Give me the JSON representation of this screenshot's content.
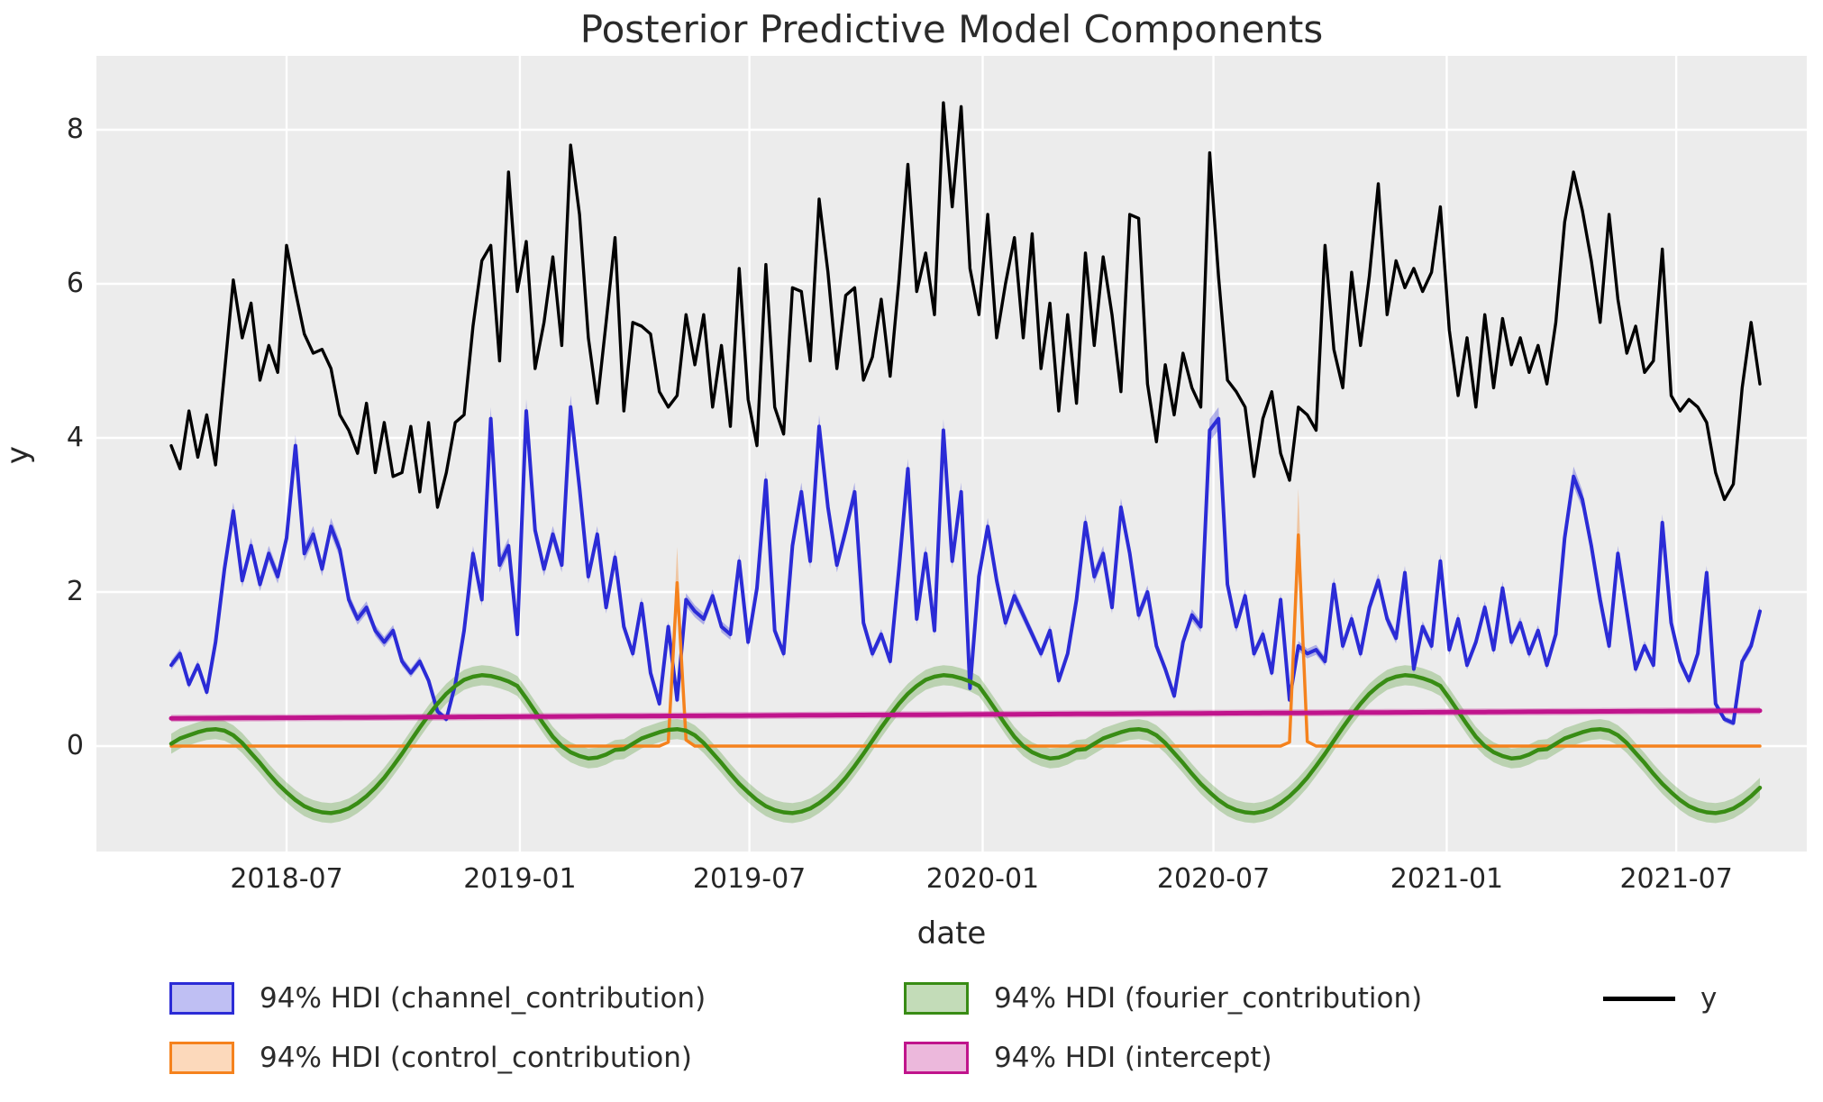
{
  "chart_data": {
    "type": "line",
    "title": "Posterior Predictive Model Components",
    "xlabel": "date",
    "ylabel": "y",
    "background_color": "#ececec",
    "grid_color": "#ffffff",
    "text_color": "#262626",
    "x_start_date": "2018-04-01",
    "freq_days": 7,
    "n_points": 180,
    "ylim": [
      -1.38,
      9.02
    ],
    "y_ticks": [
      0,
      2,
      4,
      6,
      8
    ],
    "x_ticks": [
      {
        "label": "2018-07",
        "date": "2018-07-01"
      },
      {
        "label": "2019-01",
        "date": "2019-01-01"
      },
      {
        "label": "2019-07",
        "date": "2019-07-01"
      },
      {
        "label": "2020-01",
        "date": "2020-01-01"
      },
      {
        "label": "2020-07",
        "date": "2020-07-01"
      },
      {
        "label": "2021-01",
        "date": "2021-01-01"
      },
      {
        "label": "2021-07",
        "date": "2021-07-01"
      }
    ],
    "series": [
      {
        "name": "channel_contribution",
        "legend": "94% HDI (channel_contribution)",
        "kind": "line+band",
        "color": "#2b2bd6",
        "line_width": 4,
        "band_opacity": 0.32,
        "band": {
          "mode": "linear",
          "base": 0.03,
          "k": 0.028
        },
        "values": [
          1.05,
          1.2,
          0.8,
          1.05,
          0.7,
          1.35,
          2.3,
          3.05,
          2.15,
          2.6,
          2.1,
          2.5,
          2.2,
          2.7,
          3.9,
          2.5,
          2.75,
          2.3,
          2.85,
          2.55,
          1.9,
          1.65,
          1.8,
          1.5,
          1.35,
          1.5,
          1.1,
          0.95,
          1.1,
          0.85,
          0.45,
          0.35,
          0.8,
          1.5,
          2.5,
          1.9,
          4.25,
          2.35,
          2.6,
          1.45,
          4.35,
          2.8,
          2.3,
          2.75,
          2.35,
          4.4,
          3.35,
          2.2,
          2.75,
          1.8,
          2.45,
          1.55,
          1.2,
          1.85,
          0.95,
          0.55,
          1.55,
          0.6,
          1.9,
          1.75,
          1.65,
          1.95,
          1.55,
          1.45,
          2.4,
          1.35,
          2.05,
          3.45,
          1.5,
          1.2,
          2.6,
          3.3,
          2.4,
          4.15,
          3.1,
          2.35,
          2.8,
          3.3,
          1.6,
          1.2,
          1.45,
          1.1,
          2.3,
          3.6,
          1.65,
          2.5,
          1.5,
          4.1,
          2.4,
          3.3,
          0.75,
          2.2,
          2.85,
          2.15,
          1.6,
          1.95,
          1.7,
          1.45,
          1.2,
          1.5,
          0.85,
          1.2,
          1.9,
          2.9,
          2.2,
          2.5,
          1.8,
          3.1,
          2.5,
          1.7,
          2.0,
          1.3,
          1.0,
          0.65,
          1.35,
          1.7,
          1.55,
          4.1,
          4.25,
          2.1,
          1.55,
          1.95,
          1.2,
          1.45,
          0.95,
          1.9,
          0.6,
          1.3,
          1.2,
          1.25,
          1.1,
          2.1,
          1.3,
          1.65,
          1.2,
          1.8,
          2.15,
          1.65,
          1.4,
          2.25,
          1.0,
          1.55,
          1.3,
          2.4,
          1.25,
          1.65,
          1.05,
          1.35,
          1.8,
          1.25,
          2.05,
          1.35,
          1.6,
          1.2,
          1.5,
          1.05,
          1.45,
          2.7,
          3.5,
          3.2,
          2.6,
          1.9,
          1.3,
          2.5,
          1.75,
          1.0,
          1.3,
          1.05,
          2.9,
          1.6,
          1.1,
          0.85,
          1.2,
          2.25,
          0.55,
          0.35,
          0.3,
          1.1,
          1.3,
          1.75
        ]
      },
      {
        "name": "control_contribution",
        "legend": "94% HDI (control_contribution)",
        "kind": "line+band",
        "color": "#f5821d",
        "line_width": 3.5,
        "band_opacity": 0.35,
        "band": {
          "mode": "prop",
          "up": 0.22,
          "down": 0.18
        },
        "sparse": {
          "default": 0,
          "points": {
            "56": 0.05,
            "57": 2.12,
            "58": 0.08,
            "126": 0.05,
            "127": 2.74,
            "128": 0.06
          }
        }
      },
      {
        "name": "fourier_contribution",
        "legend": "94% HDI (fourier_contribution)",
        "kind": "line+band",
        "color": "#388c14",
        "line_width": 4.5,
        "band_opacity": 0.27,
        "band": {
          "mode": "const",
          "w": 0.13
        },
        "cycle": [
          0.03,
          0.1,
          0.14,
          0.18,
          0.21,
          0.22,
          0.2,
          0.14,
          0.04,
          -0.09,
          -0.22,
          -0.36,
          -0.49,
          -0.6,
          -0.7,
          -0.78,
          -0.83,
          -0.86,
          -0.87,
          -0.85,
          -0.81,
          -0.74,
          -0.65,
          -0.54,
          -0.41,
          -0.26,
          -0.1,
          0.07,
          0.24,
          0.4,
          0.55,
          0.68,
          0.78,
          0.86,
          0.9,
          0.92,
          0.91,
          0.88,
          0.84,
          0.78,
          0.62,
          0.45,
          0.28,
          0.12,
          0.0,
          -0.08,
          -0.13,
          -0.16,
          -0.15,
          -0.11,
          -0.05,
          -0.04
        ]
      },
      {
        "name": "intercept",
        "legend": "94% HDI (intercept)",
        "kind": "line+band",
        "color": "#c0148c",
        "line_width": 5,
        "band_opacity": 0.32,
        "band": {
          "mode": "const",
          "w": 0.045
        },
        "linear": {
          "start": 0.36,
          "end": 0.46
        }
      },
      {
        "name": "y",
        "legend": "y",
        "kind": "line",
        "color": "#000000",
        "line_width": 3.4,
        "values": [
          3.9,
          3.6,
          4.35,
          3.75,
          4.3,
          3.65,
          4.85,
          6.05,
          5.3,
          5.75,
          4.75,
          5.2,
          4.85,
          6.5,
          5.9,
          5.35,
          5.1,
          5.15,
          4.9,
          4.3,
          4.1,
          3.8,
          4.45,
          3.55,
          4.2,
          3.5,
          3.55,
          4.15,
          3.3,
          4.2,
          3.1,
          3.55,
          4.2,
          4.3,
          5.45,
          6.3,
          6.5,
          5.0,
          7.45,
          5.9,
          6.55,
          4.9,
          5.5,
          6.35,
          5.2,
          7.8,
          6.9,
          5.3,
          4.45,
          5.5,
          6.6,
          4.35,
          5.5,
          5.45,
          5.35,
          4.6,
          4.4,
          4.55,
          5.6,
          4.95,
          5.6,
          4.4,
          5.2,
          4.15,
          6.2,
          4.5,
          3.9,
          6.25,
          4.4,
          4.05,
          5.95,
          5.9,
          5.0,
          7.1,
          6.15,
          4.9,
          5.85,
          5.95,
          4.75,
          5.05,
          5.8,
          4.8,
          6.05,
          7.55,
          5.9,
          6.4,
          5.6,
          8.35,
          7.0,
          8.3,
          6.2,
          5.6,
          6.9,
          5.3,
          6.0,
          6.6,
          5.3,
          6.65,
          4.9,
          5.75,
          4.35,
          5.6,
          4.45,
          6.4,
          5.2,
          6.35,
          5.6,
          4.6,
          6.9,
          6.85,
          4.7,
          3.95,
          4.95,
          4.3,
          5.1,
          4.65,
          4.4,
          7.7,
          6.1,
          4.75,
          4.6,
          4.4,
          3.5,
          4.25,
          4.6,
          3.8,
          3.45,
          4.4,
          4.3,
          4.1,
          6.5,
          5.15,
          4.65,
          6.15,
          5.2,
          6.1,
          7.3,
          5.6,
          6.3,
          5.95,
          6.2,
          5.9,
          6.15,
          7.0,
          5.4,
          4.55,
          5.3,
          4.4,
          5.6,
          4.65,
          5.55,
          4.95,
          5.3,
          4.85,
          5.2,
          4.7,
          5.5,
          6.8,
          7.45,
          6.95,
          6.3,
          5.5,
          6.9,
          5.8,
          5.1,
          5.45,
          4.85,
          5.0,
          6.45,
          4.55,
          4.35,
          4.5,
          4.4,
          4.2,
          3.55,
          3.2,
          3.4,
          4.65,
          5.5,
          4.7
        ]
      }
    ],
    "legend": {
      "columns": [
        [
          {
            "label": "94% HDI (channel_contribution)",
            "swatch": "patch",
            "color": "#2b2bd6"
          },
          {
            "label": "94% HDI (control_contribution)",
            "swatch": "patch",
            "color": "#f5821d"
          }
        ],
        [
          {
            "label": "94% HDI (fourier_contribution)",
            "swatch": "patch",
            "color": "#388c14"
          },
          {
            "label": "94% HDI (intercept)",
            "swatch": "patch",
            "color": "#c0148c"
          }
        ],
        [
          {
            "label": "y",
            "swatch": "line",
            "color": "#000000"
          }
        ]
      ]
    }
  }
}
